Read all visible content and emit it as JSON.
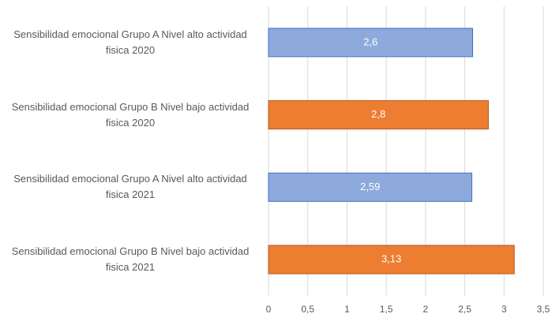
{
  "chart_data": {
    "type": "barh",
    "categories": [
      "Sensibilidad emocional Grupo A Nivel alto actividad fisica 2020",
      "Sensibilidad emocional Grupo B Nivel bajo actividad fisica 2020",
      "Sensibilidad emocional Grupo A Nivel alto actividad fisica 2021",
      "Sensibilidad emocional Grupo B Nivel bajo actividad fisica 2021"
    ],
    "values": [
      2.6,
      2.8,
      2.59,
      3.13
    ],
    "value_labels": [
      "2,6",
      "2,8",
      "2,59",
      "3,13"
    ],
    "colors": [
      "#8ea9db",
      "#ed7d31",
      "#8ea9db",
      "#ed7d31"
    ],
    "xlim": [
      0,
      3.5
    ],
    "xticks": [
      0,
      {
        "value": 0.5,
        "label": "0,5"
      },
      1,
      {
        "value": 1.5,
        "label": "1,5"
      },
      2,
      {
        "value": 2.5,
        "label": "2,5"
      },
      3,
      {
        "value": 3.5,
        "label": "3,5"
      }
    ],
    "grid": true
  }
}
